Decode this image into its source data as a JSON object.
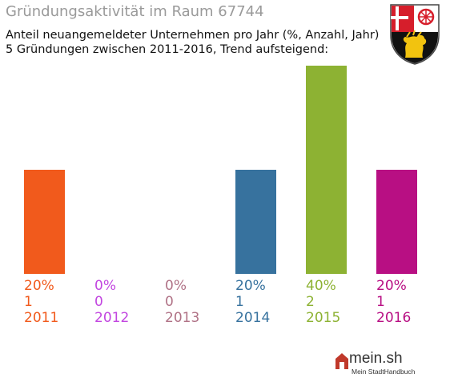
{
  "header": {
    "title": "Gründungsaktivität im Raum 67744",
    "subtitle_line1": "Anteil neuangemeldeter Unternehmen pro Jahr (%, Anzahl, Jahr)",
    "subtitle_line2": "5 Gründungen zwischen 2011-2016, Trend aufsteigend:"
  },
  "logo": {
    "text": "mein.sh",
    "subtext": "Mein StadtHandbuch",
    "icon": "house-icon"
  },
  "crest": {
    "icon": "coat-of-arms-icon"
  },
  "chart_data": {
    "type": "bar",
    "categories": [
      "2011",
      "2012",
      "2013",
      "2014",
      "2015",
      "2016"
    ],
    "values": [
      20,
      0,
      0,
      20,
      40,
      20
    ],
    "percent_labels": [
      "20%",
      "0%",
      "0%",
      "20%",
      "40%",
      "20%"
    ],
    "counts": [
      "1",
      "0",
      "0",
      "1",
      "2",
      "1"
    ],
    "colors": [
      "#f15a1c",
      "#c246e0",
      "#b07286",
      "#37729e",
      "#8db233",
      "#b80f83"
    ],
    "unit": "%",
    "ylim": [
      0,
      40
    ],
    "grid": false,
    "legend": "none"
  }
}
